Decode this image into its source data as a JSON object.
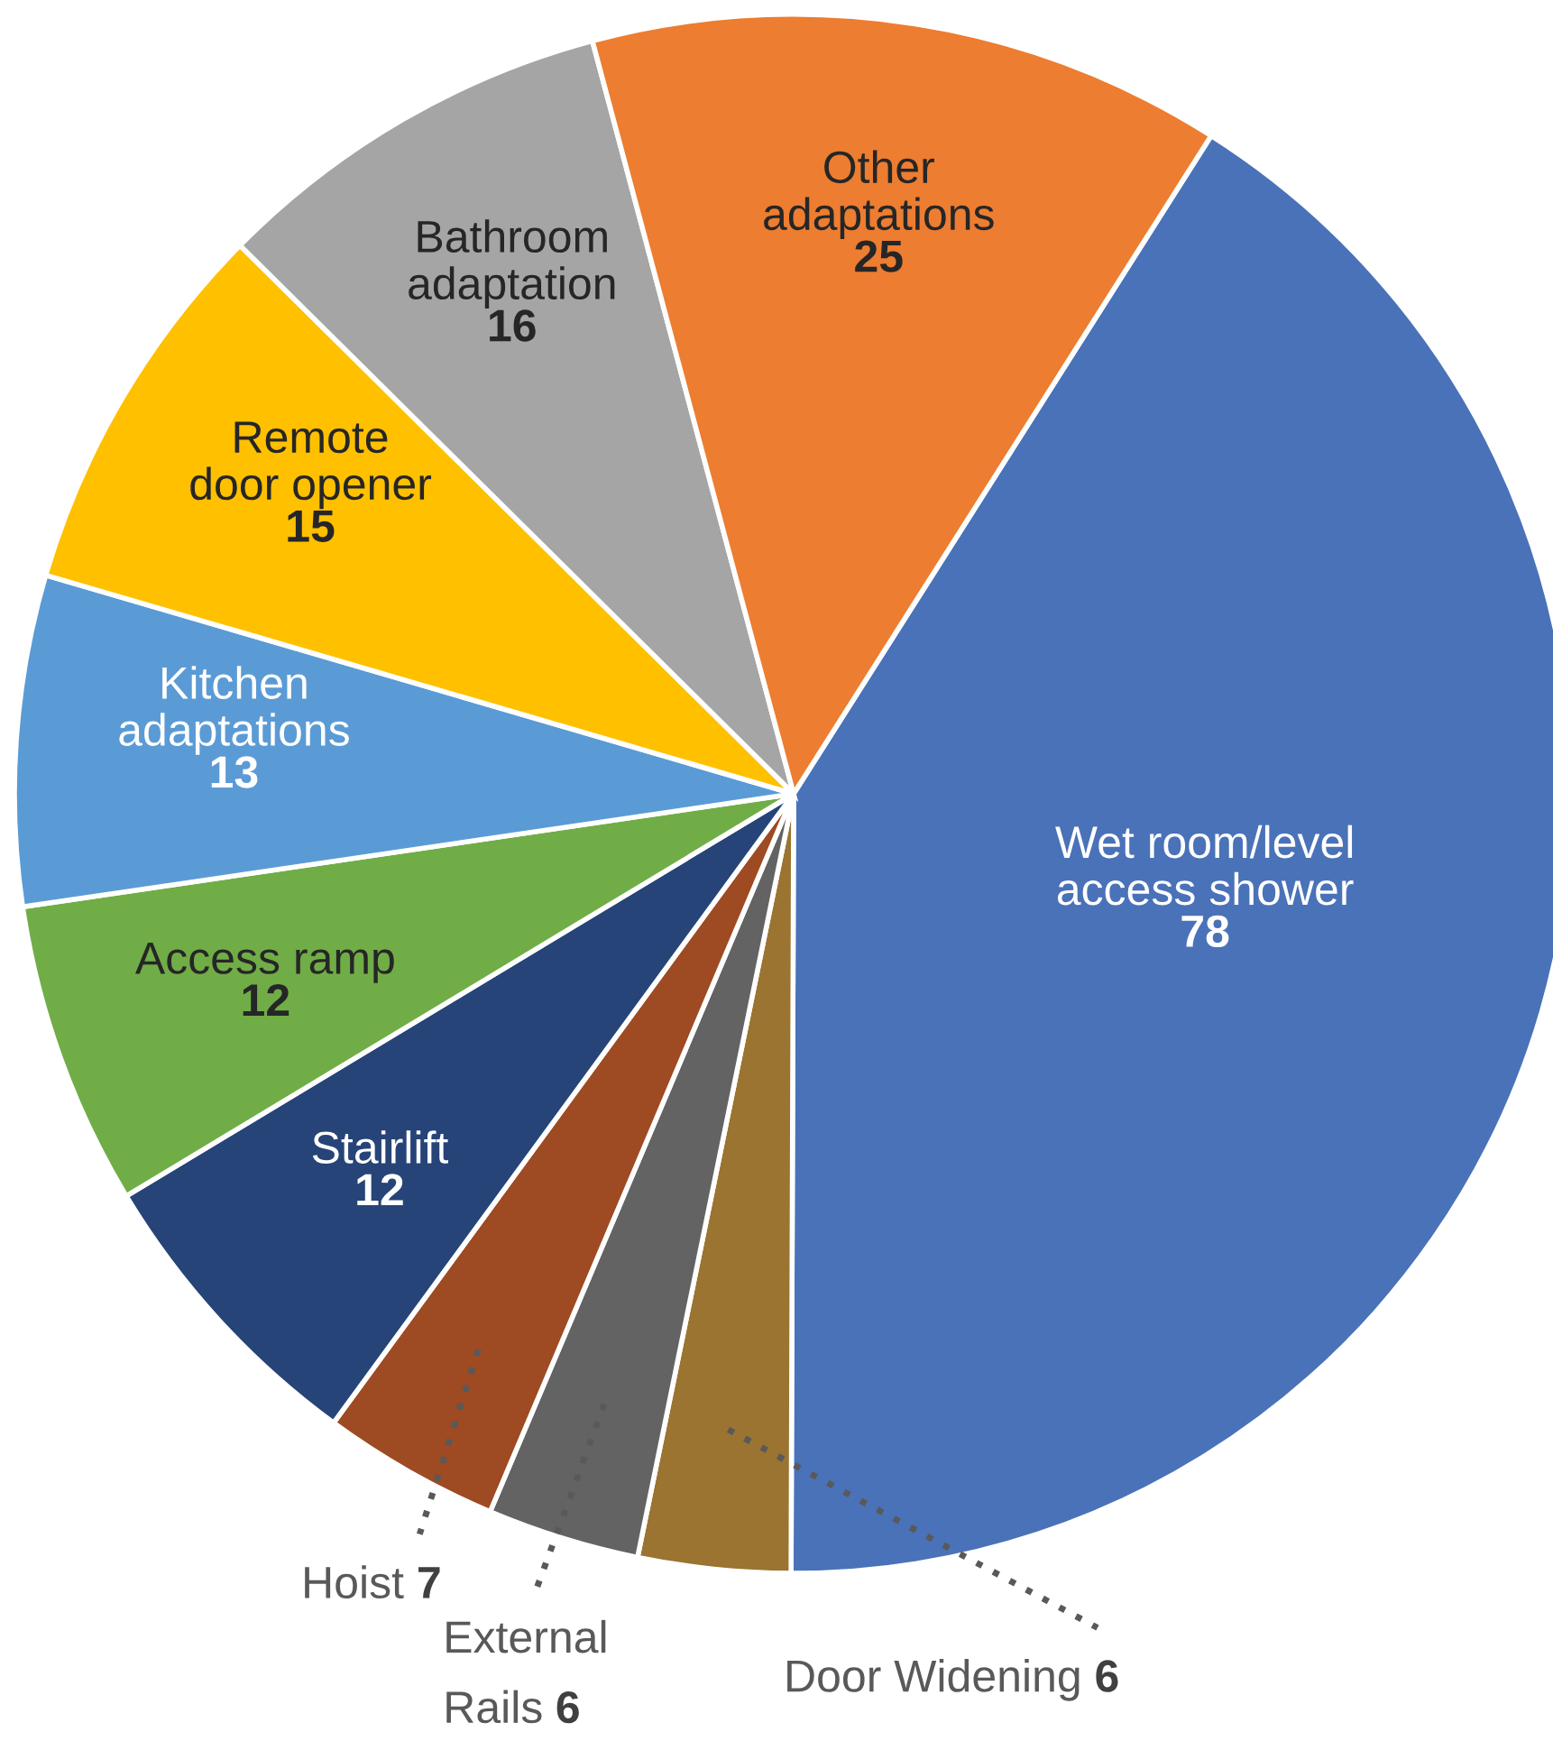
{
  "chart_data": {
    "type": "pie",
    "data_labels": true,
    "categories": [
      "Wet room/level\naccess shower",
      "Door Widening",
      "External\nRails",
      "Hoist",
      "Stairlift",
      "Access ramp",
      "Kitchen\nadaptations",
      "Remote\ndoor opener",
      "Bathroom\nadaptation",
      "Other\nadaptations"
    ],
    "values": [
      78,
      6,
      6,
      7,
      12,
      12,
      13,
      15,
      16,
      25
    ],
    "colors": [
      "#4a72b8",
      "#9a7430",
      "#636363",
      "#9e4a22",
      "#264478",
      "#70ad47",
      "#5b9bd5",
      "#ffc000",
      "#a5a5a5",
      "#ed7d31"
    ]
  }
}
